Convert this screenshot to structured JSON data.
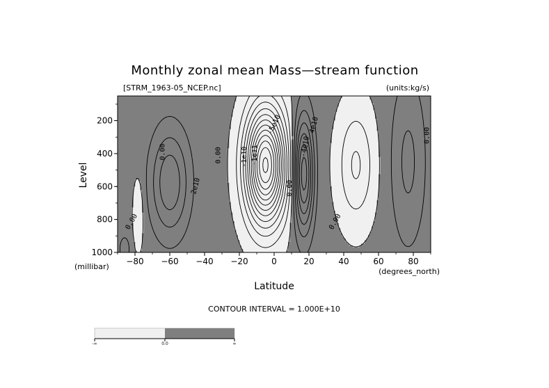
{
  "chart_data": {
    "type": "contour",
    "title": "Monthly zonal mean Mass—stream function",
    "file_label": "[STRM_1963-05_NCEP.nc]",
    "units_label": "(units:kg/s)",
    "xlabel": "Latitude",
    "xunits": "(degrees_north)",
    "ylabel": "Level",
    "yunits": "(millibar)",
    "xlim": [
      -90,
      90
    ],
    "ylim": [
      1000,
      50
    ],
    "y_inverted": true,
    "x_ticks": [
      -80,
      -60,
      -40,
      -20,
      0,
      20,
      40,
      60,
      80
    ],
    "y_ticks": [
      200,
      400,
      600,
      800,
      1000
    ],
    "contour_interval_text": "CONTOUR INTERVAL = 1.000E+10",
    "contour_interval": 10000000000,
    "shading": {
      "positive_color": "#7f7f7f",
      "negative_color": "#f0f0f0",
      "threshold": 0
    },
    "colorbar_labels": [
      "-∞",
      "0.0",
      "∞"
    ],
    "contour_labels": [
      {
        "text": "0.00",
        "lat": -63,
        "level": 390,
        "rotate": -90
      },
      {
        "text": "2e10",
        "lat": -44,
        "level": 600,
        "rotate": -75
      },
      {
        "text": "0.00",
        "lat": -31,
        "level": 410,
        "rotate": -90
      },
      {
        "text": "-1e11",
        "lat": -10,
        "level": 410,
        "rotate": -90
      },
      {
        "text": "-1e10",
        "lat": -16,
        "level": 420,
        "rotate": -90
      },
      {
        "text": "-5e10",
        "lat": 1,
        "level": 230,
        "rotate": -65
      },
      {
        "text": "0.00",
        "lat": 10,
        "level": 610,
        "rotate": -90
      },
      {
        "text": "-4e10",
        "lat": 19,
        "level": 360,
        "rotate": -80
      },
      {
        "text": "4e10",
        "lat": 24,
        "level": 230,
        "rotate": -75
      },
      {
        "text": "0.00",
        "lat": 36,
        "level": 820,
        "rotate": -60
      },
      {
        "text": "0.00",
        "lat": -81,
        "level": 820,
        "rotate": -60
      },
      {
        "text": "0.00",
        "lat": 89,
        "level": 290,
        "rotate": -90
      }
    ],
    "cells": [
      {
        "lat": -60,
        "level": 575,
        "sigma_lat": 11,
        "sigma_level": 320,
        "amp": 3.6
      },
      {
        "lat": -5,
        "level": 470,
        "sigma_lat": 11,
        "sigma_level": 330,
        "amp": -12.5
      },
      {
        "lat": 17,
        "level": 520,
        "sigma_lat": 5.5,
        "sigma_level": 340,
        "amp": 6.5
      },
      {
        "lat": 47,
        "level": 470,
        "sigma_lat": 10,
        "sigma_level": 330,
        "amp": -2.4
      },
      {
        "lat": 77,
        "level": 450,
        "sigma_lat": 10,
        "sigma_level": 520,
        "amp": 2.0
      },
      {
        "lat": -86,
        "level": 980,
        "sigma_lat": 3,
        "sigma_level": 80,
        "amp": 1.6
      },
      {
        "lat": -78,
        "level": 760,
        "sigma_lat": 3,
        "sigma_level": 220,
        "amp": -1.2
      }
    ]
  }
}
